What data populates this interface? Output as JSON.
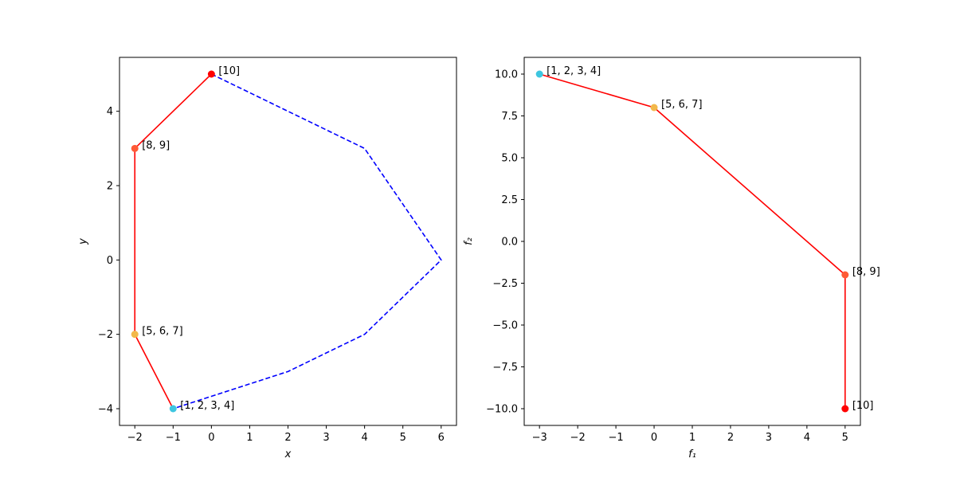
{
  "colors": {
    "hull_line": "#0000ff",
    "front_line": "#ff0000",
    "marker_red": "#ff0000",
    "marker_orange": "#ff5a36",
    "marker_gold": "#f2b84b",
    "marker_cyan": "#3ec6e0"
  },
  "chart_data": [
    {
      "type": "line",
      "xlabel": "x",
      "ylabel": "y",
      "xlim": [
        -2.4,
        6.4
      ],
      "ylim": [
        -4.45,
        5.45
      ],
      "xticks": [
        -2,
        -1,
        0,
        1,
        2,
        3,
        4,
        5,
        6
      ],
      "yticks": [
        -4,
        -2,
        0,
        2,
        4
      ],
      "grid": false,
      "series": [
        {
          "style": "dashed",
          "color": "#0000ff",
          "points": [
            [
              0,
              5
            ],
            [
              4,
              3
            ],
            [
              6,
              0
            ],
            [
              4,
              -2
            ],
            [
              2,
              -3
            ],
            [
              -1,
              -4
            ]
          ]
        },
        {
          "style": "solid",
          "color": "#ff0000",
          "points": [
            [
              -1,
              -4
            ],
            [
              -2,
              -2
            ],
            [
              -2,
              3
            ],
            [
              0,
              5
            ]
          ]
        }
      ],
      "markers": [
        {
          "x": -1,
          "y": -4,
          "label": "[1, 2, 3, 4]",
          "color": "#3ec6e0"
        },
        {
          "x": -2,
          "y": -2,
          "label": "[5, 6, 7]",
          "color": "#f2b84b"
        },
        {
          "x": -2,
          "y": 3,
          "label": "[8, 9]",
          "color": "#ff5a36"
        },
        {
          "x": 0,
          "y": 5,
          "label": "[10]",
          "color": "#ff0000"
        }
      ]
    },
    {
      "type": "line",
      "xlabel": "f₁",
      "ylabel": "f₂",
      "xlim": [
        -3.4,
        5.4
      ],
      "ylim": [
        -11,
        11
      ],
      "xticks": [
        -3,
        -2,
        -1,
        0,
        1,
        2,
        3,
        4,
        5
      ],
      "yticks": [
        -10.0,
        -7.5,
        -5.0,
        -2.5,
        0.0,
        2.5,
        5.0,
        7.5,
        10.0
      ],
      "ytick_labels": [
        "−10.0",
        "−7.5",
        "−5.0",
        "−2.5",
        "0.0",
        "2.5",
        "5.0",
        "7.5",
        "10.0"
      ],
      "grid": false,
      "series": [
        {
          "style": "solid",
          "color": "#ff0000",
          "points": [
            [
              -3,
              10
            ],
            [
              0,
              8
            ],
            [
              5,
              -2
            ],
            [
              5,
              -10
            ]
          ]
        }
      ],
      "markers": [
        {
          "x": -3,
          "y": 10,
          "label": "[1, 2, 3, 4]",
          "color": "#3ec6e0"
        },
        {
          "x": 0,
          "y": 8,
          "label": "[5, 6, 7]",
          "color": "#f2b84b"
        },
        {
          "x": 5,
          "y": -2,
          "label": "[8, 9]",
          "color": "#ff5a36"
        },
        {
          "x": 5,
          "y": -10,
          "label": "[10]",
          "color": "#ff0000"
        }
      ]
    }
  ]
}
